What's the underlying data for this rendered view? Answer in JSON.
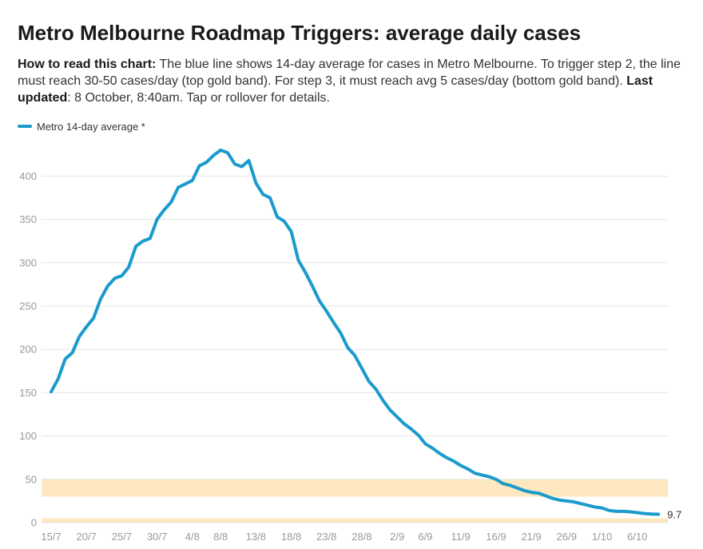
{
  "header": {
    "title": "Metro Melbourne Roadmap Triggers: average daily cases",
    "howto_label": "How to read this chart:",
    "howto_text": " The blue line shows 14-day average for cases in Metro Melbourne. To trigger step 2, the line must reach 30-50 cases/day (top gold band). For step 3, it must reach avg 5 cases/day (bottom gold band). ",
    "updated_label": "Last updated",
    "updated_text": ": 8 October, 8:40am. Tap or rollover for details."
  },
  "colors": {
    "line": "#1a9bcb",
    "band": "#fde8bf",
    "grid": "#e6e6e6",
    "axis_text": "#999999"
  },
  "chart_data": {
    "type": "line",
    "title": "Metro Melbourne Roadmap Triggers: average daily cases",
    "xlabel": "",
    "ylabel": "",
    "ylim": [
      0,
      430
    ],
    "yticks": [
      0,
      50,
      100,
      150,
      200,
      250,
      300,
      350,
      400
    ],
    "xticks": [
      "15/7",
      "20/7",
      "25/7",
      "30/7",
      "4/8",
      "8/8",
      "13/8",
      "18/8",
      "23/8",
      "28/8",
      "2/9",
      "6/9",
      "11/9",
      "16/9",
      "21/9",
      "26/9",
      "1/10",
      "6/10"
    ],
    "grid": true,
    "legend": "top-left",
    "end_label": "9.7",
    "bands": [
      {
        "name": "Step 2 trigger (30-50 cases/day)",
        "from": 30,
        "to": 50
      },
      {
        "name": "Step 3 trigger (avg 5 cases/day)",
        "from": 0,
        "to": 5
      }
    ],
    "series": [
      {
        "name": "Metro 14-day average *",
        "x_start": "15/7",
        "values": [
          151,
          166,
          189,
          196,
          215,
          226,
          236,
          258,
          273,
          282,
          285,
          295,
          319,
          325,
          328,
          350,
          361,
          370,
          387,
          391,
          395,
          412,
          416,
          424,
          430,
          427,
          414,
          411,
          418,
          392,
          379,
          375,
          353,
          348,
          336,
          303,
          289,
          273,
          256,
          244,
          231,
          219,
          202,
          193,
          178,
          163,
          154,
          141,
          130,
          122,
          114,
          108,
          101,
          91,
          86,
          80,
          75,
          71,
          66,
          62,
          57,
          55,
          53,
          50,
          45,
          43,
          40,
          37,
          35,
          34,
          31,
          28,
          26,
          25,
          24,
          22,
          20,
          18,
          17,
          14,
          13,
          13,
          12.5,
          11.5,
          10.5,
          10,
          9.7
        ]
      }
    ]
  }
}
